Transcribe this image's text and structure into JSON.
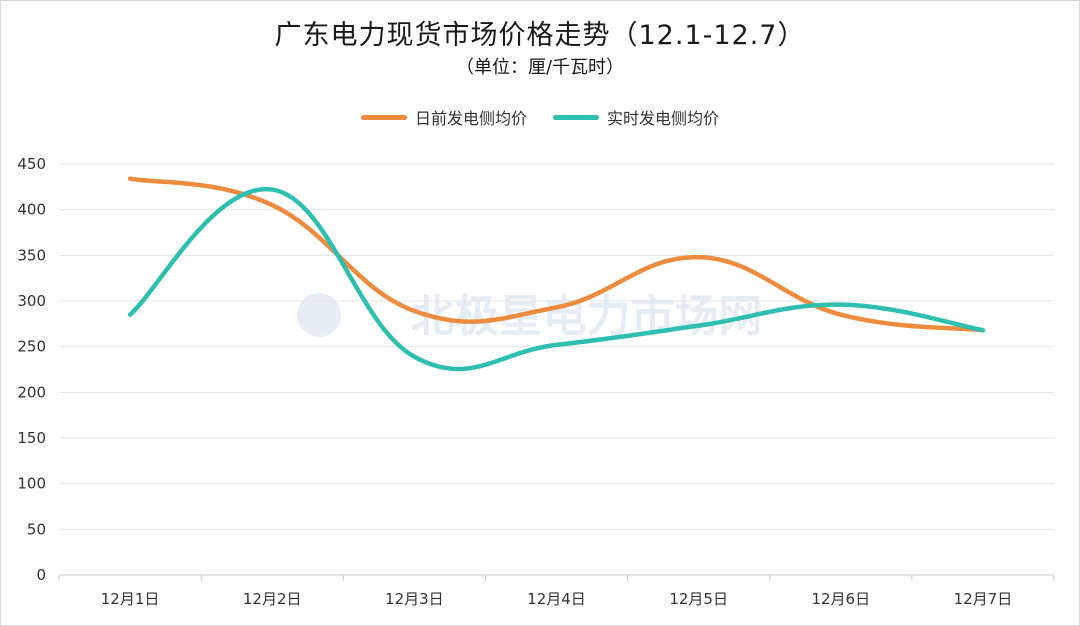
{
  "chart_data": {
    "type": "line",
    "title": "广东电力现货市场价格走势（12.1-12.7）",
    "subtitle": "（单位：厘/千瓦时）",
    "categories": [
      "12月1日",
      "12月2日",
      "12月3日",
      "12月4日",
      "12月5日",
      "12月6日",
      "12月7日"
    ],
    "series": [
      {
        "name": "日前发电侧均价",
        "color": "#ED8B3F",
        "values": [
          434,
          405,
          289,
          293,
          348,
          285,
          268
        ]
      },
      {
        "name": "实时发电侧均价",
        "color": "#2EBFB0",
        "values": [
          285,
          422,
          239,
          252,
          273,
          296,
          268
        ]
      }
    ],
    "yticks": [
      0,
      50,
      100,
      150,
      200,
      250,
      300,
      350,
      400,
      450
    ],
    "ylim": [
      0,
      450
    ],
    "grid": true,
    "legend_position": "top-center",
    "watermark": "北极星电力市场网"
  }
}
